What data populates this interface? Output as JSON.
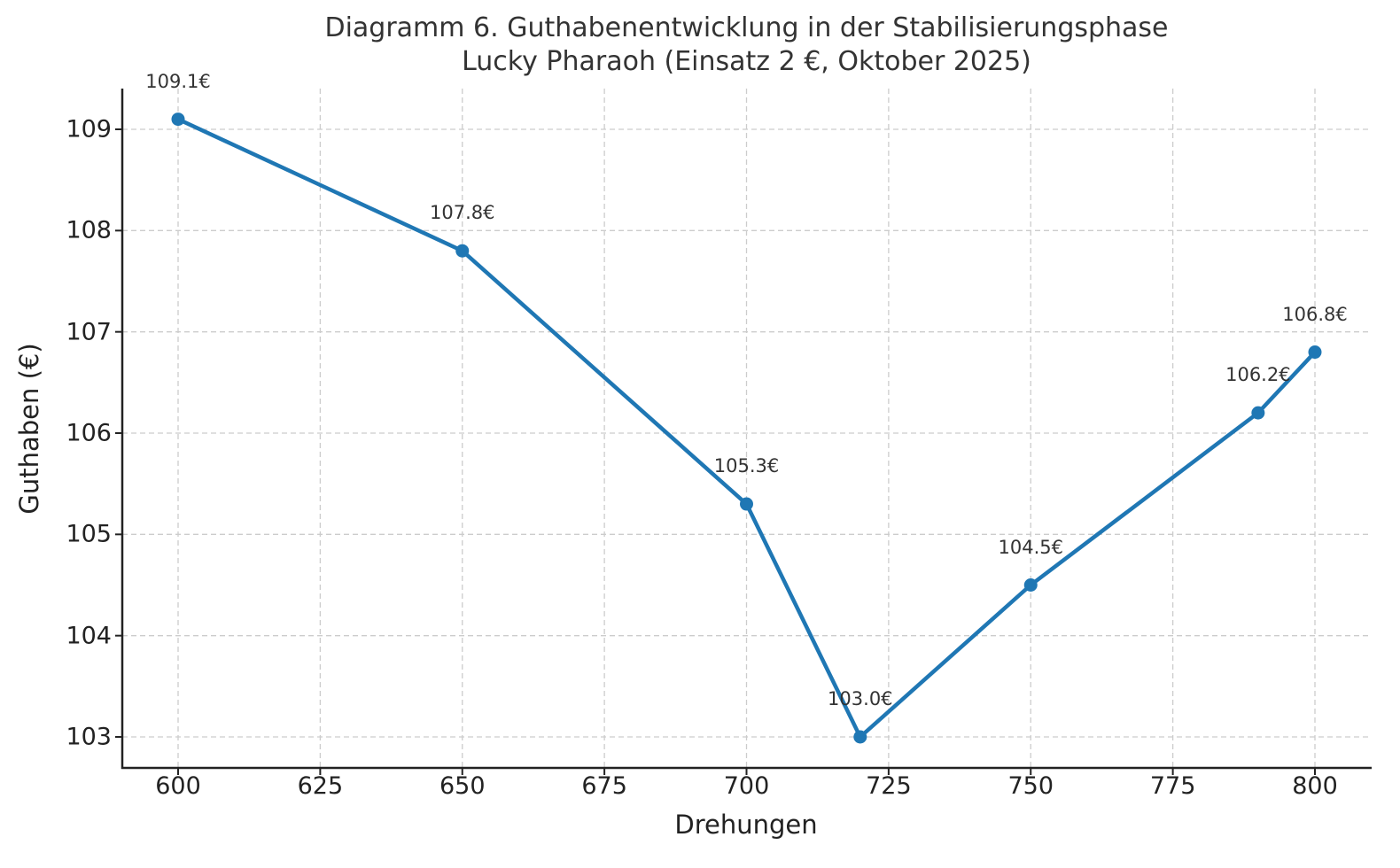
{
  "chart_data": {
    "type": "line",
    "title": "Diagramm 6. Guthabenentwicklung in der Stabilisierungsphase",
    "subtitle": "Lucky Pharaoh (Einsatz 2 €, Oktober 2025)",
    "xlabel": "Drehungen",
    "ylabel": "Guthaben (€)",
    "x": [
      600,
      650,
      700,
      720,
      750,
      790,
      800
    ],
    "series": [
      {
        "name": "Guthaben",
        "values": [
          109.1,
          107.8,
          105.3,
          103.0,
          104.5,
          106.2,
          106.8
        ],
        "color": "#1f77b4"
      }
    ],
    "data_labels": [
      "109.1€",
      "107.8€",
      "105.3€",
      "103.0€",
      "104.5€",
      "106.2€",
      "106.8€"
    ],
    "xticks": [
      "600",
      "625",
      "650",
      "675",
      "700",
      "725",
      "750",
      "775",
      "800"
    ],
    "yticks": [
      "103",
      "104",
      "105",
      "106",
      "107",
      "108",
      "109"
    ],
    "xlim": [
      590,
      810
    ],
    "ylim": [
      102.7,
      109.4
    ],
    "grid": true,
    "legend": null
  }
}
